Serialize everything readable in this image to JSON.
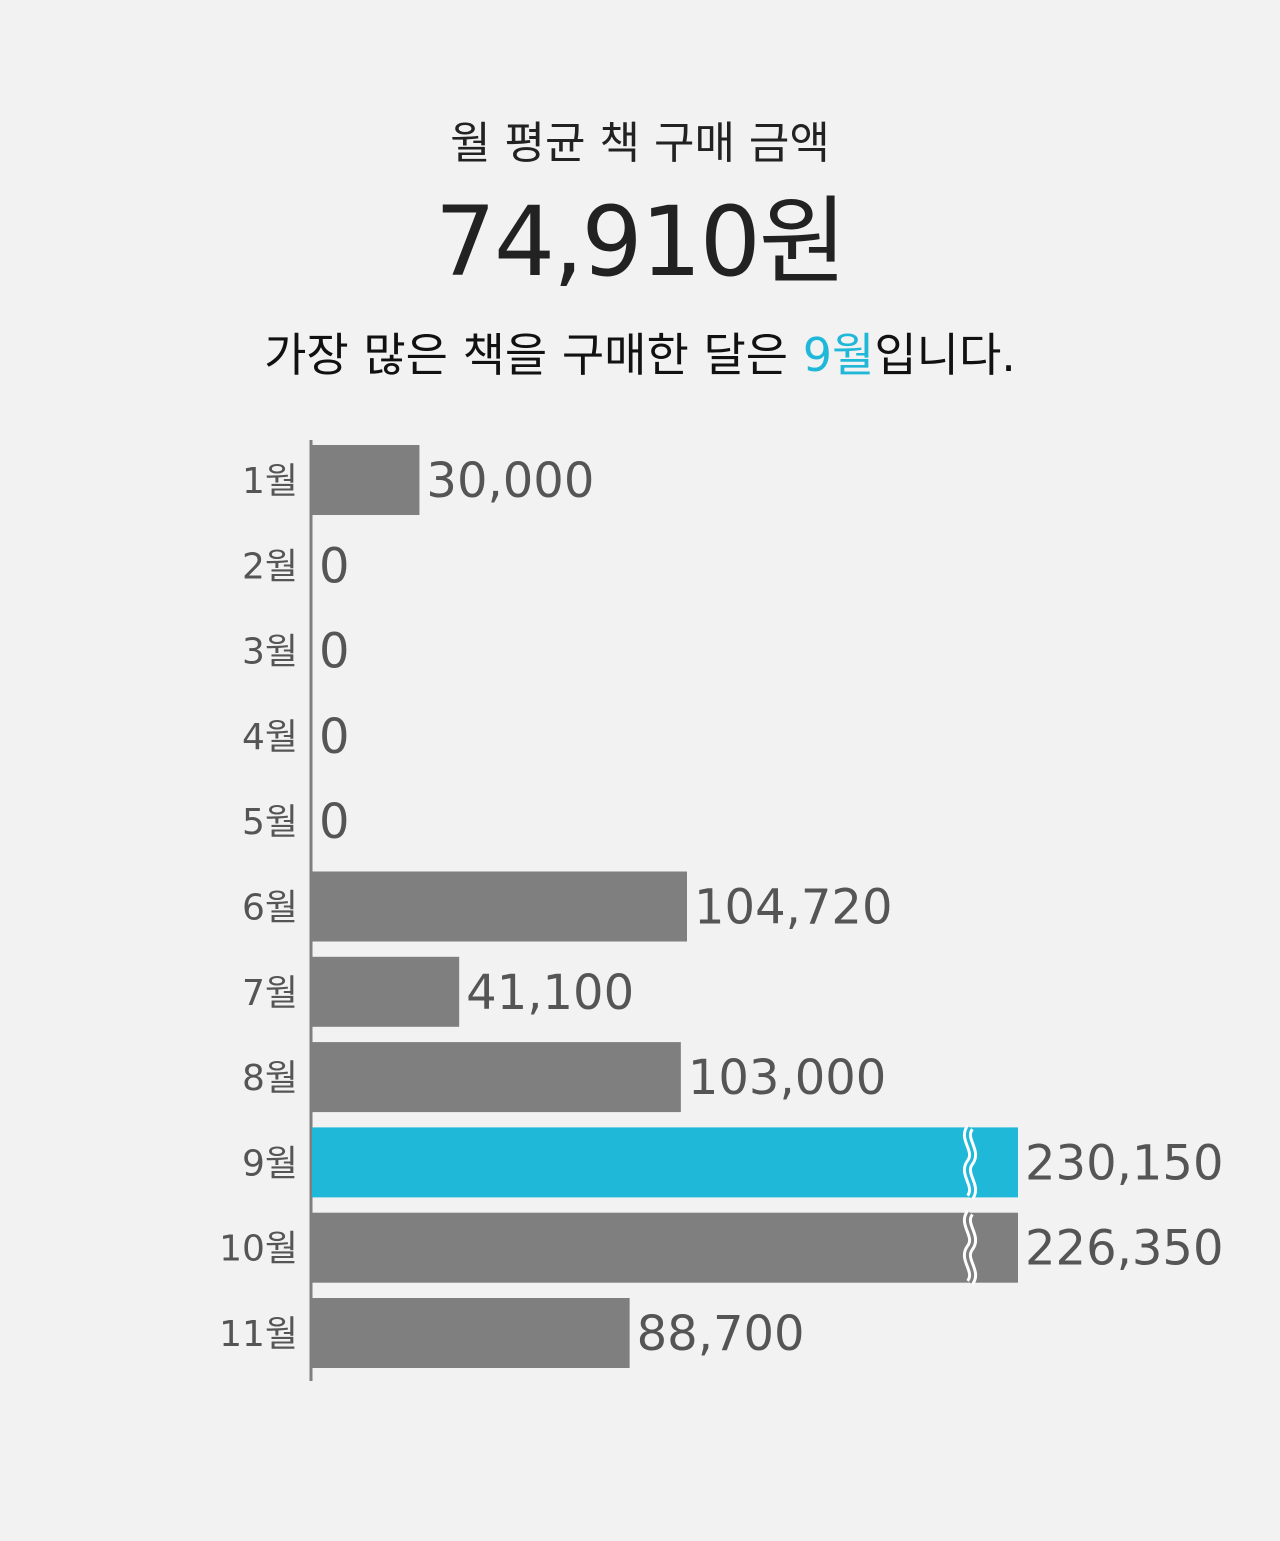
{
  "header": {
    "title": "월 평균 책 구매 금액",
    "average": "74,910원",
    "highlight_prefix": "가장 많은 책을 구매한 달은 ",
    "highlight_month": "9월",
    "highlight_suffix": "입니다."
  },
  "colors": {
    "bar": "#7f7f7f",
    "highlight_bar": "#1fb8d8",
    "axis": "#7f7f7f",
    "label_text": "#555555"
  },
  "chart_data": {
    "type": "bar",
    "orientation": "horizontal",
    "categories": [
      "1월",
      "2월",
      "3월",
      "4월",
      "5월",
      "6월",
      "7월",
      "8월",
      "9월",
      "10월",
      "11월"
    ],
    "values": [
      30000,
      0,
      0,
      0,
      0,
      104720,
      41100,
      103000,
      230150,
      226350,
      88700
    ],
    "value_labels": [
      "30,000",
      "0",
      "0",
      "0",
      "0",
      "104,720",
      "41,100",
      "103,000",
      "230,150",
      "226,350",
      "88,700"
    ],
    "highlight_category": "9월",
    "axis_break": true,
    "grid": false
  }
}
